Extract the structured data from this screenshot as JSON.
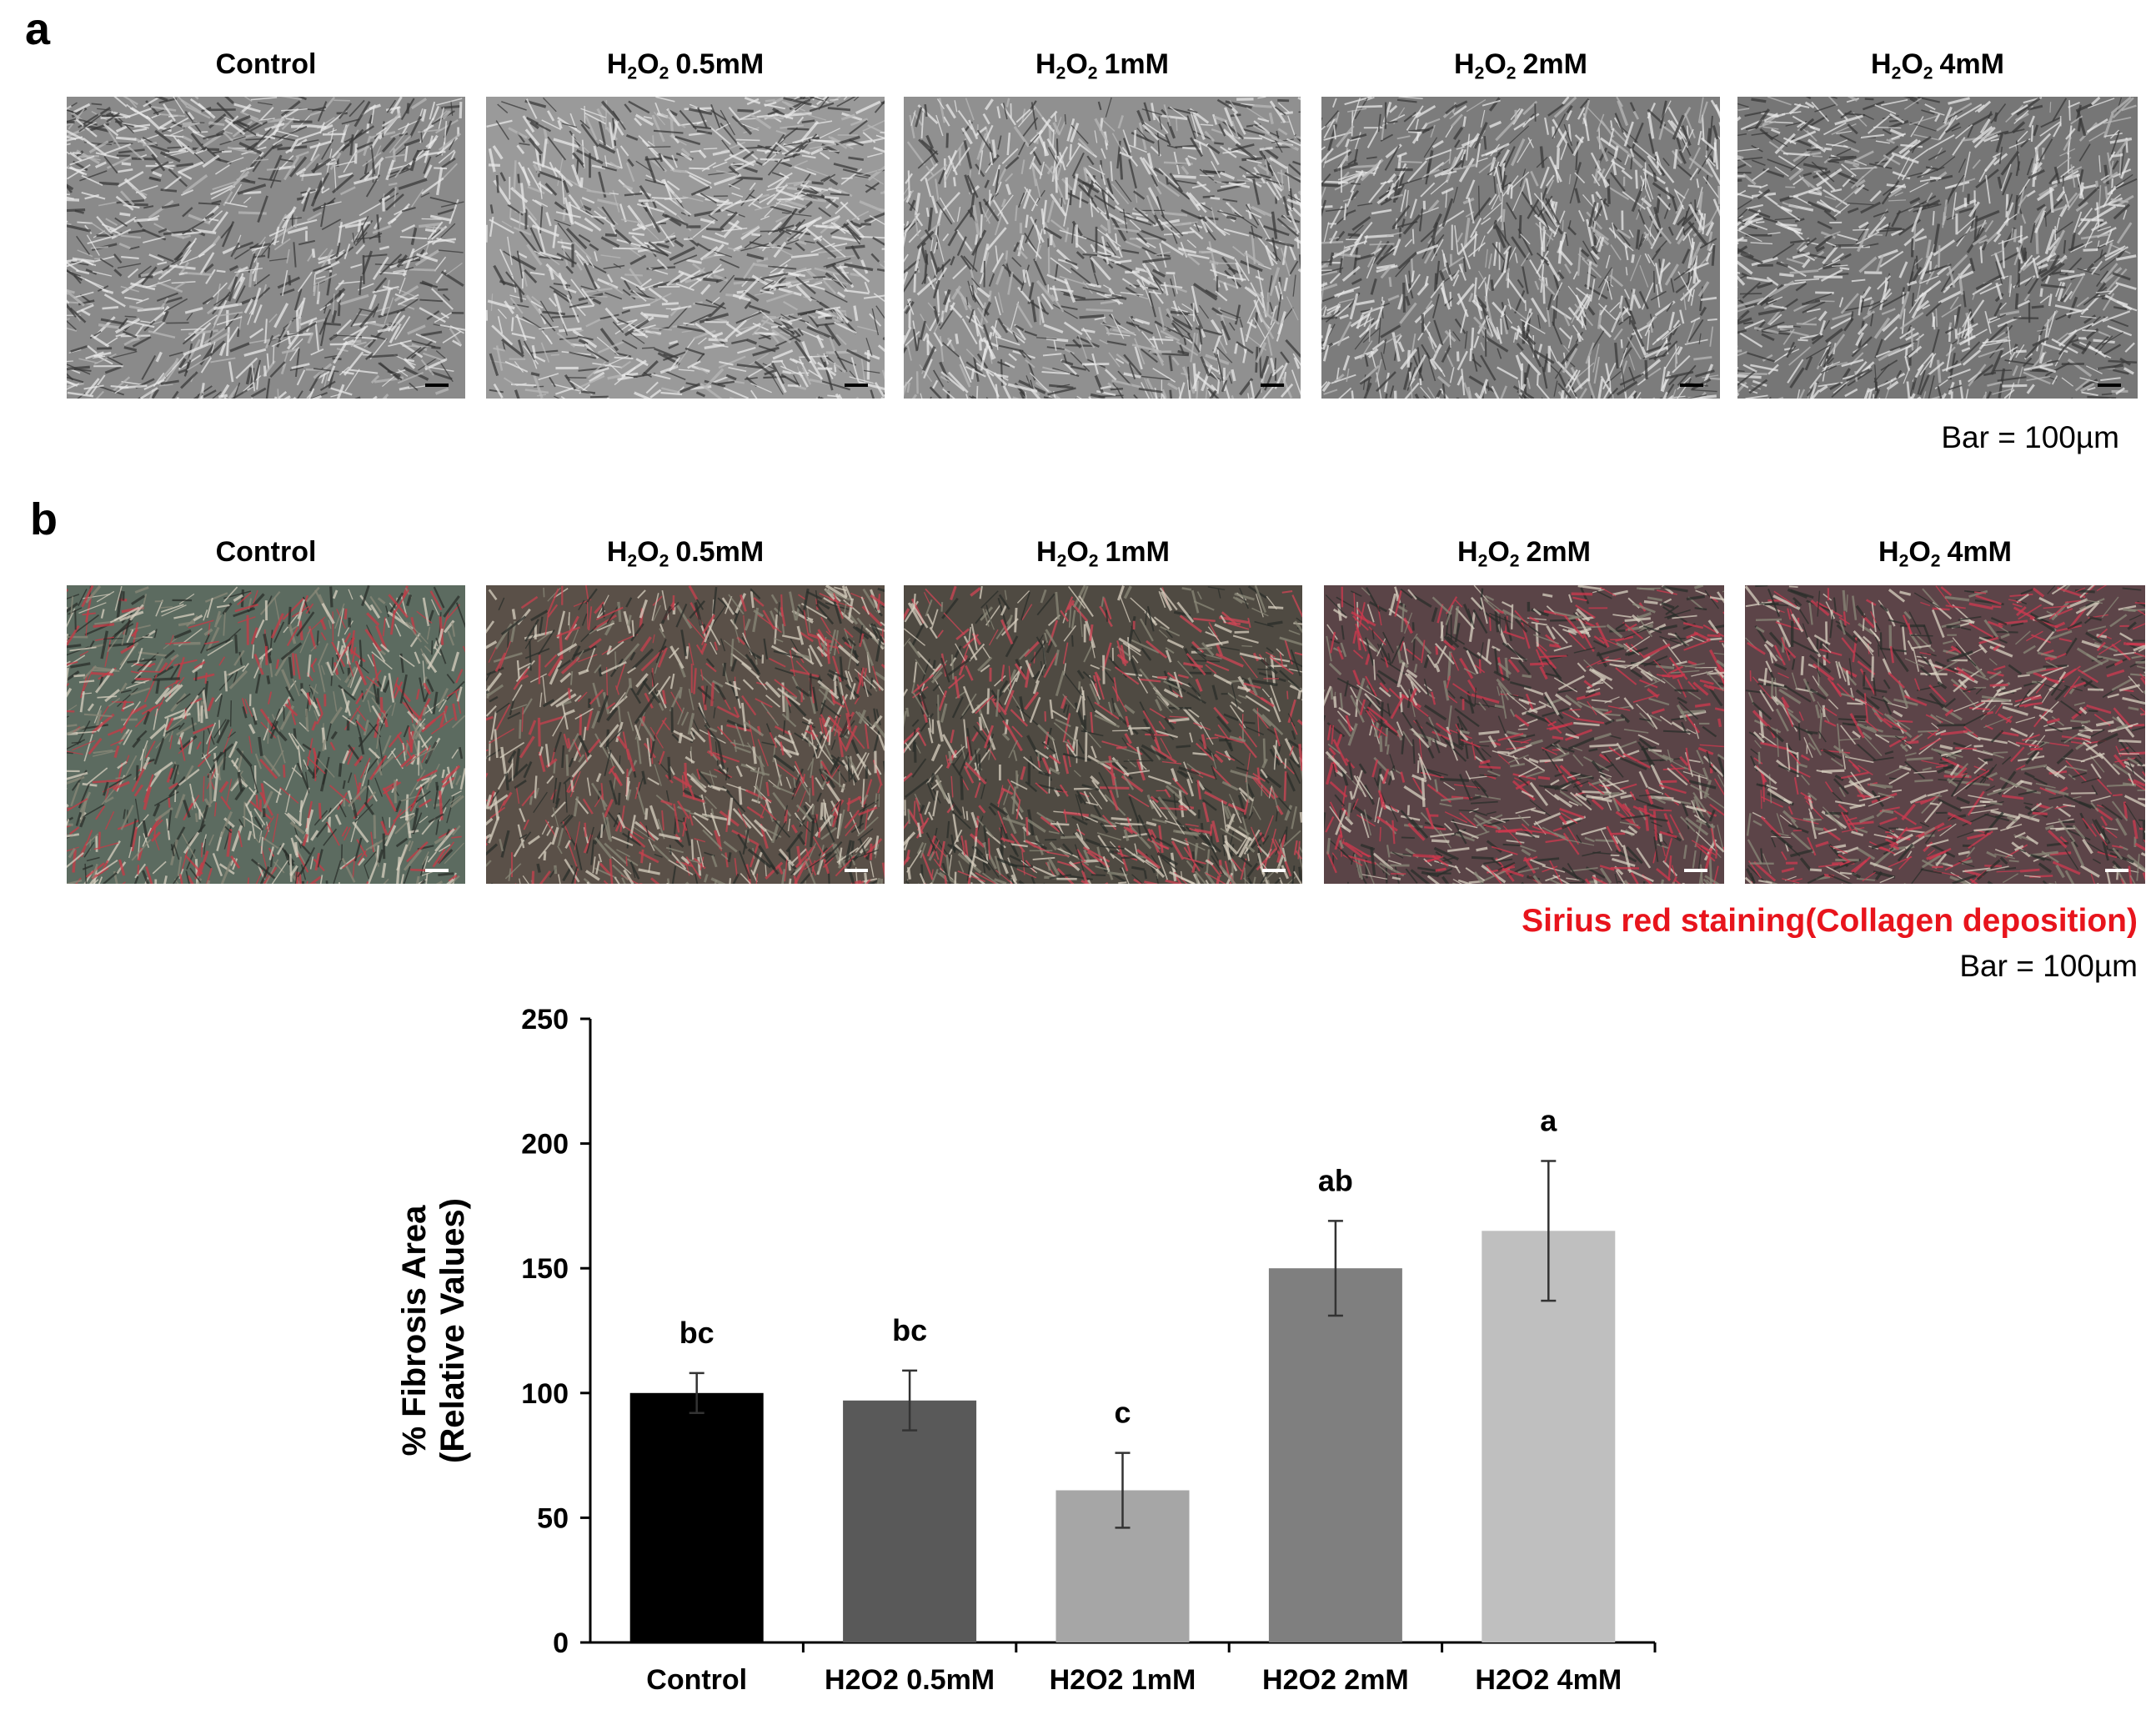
{
  "figure": {
    "panel_a": {
      "letter": "a",
      "tiles": [
        {
          "label_main": "Control",
          "label_sub": "",
          "label_tail": "",
          "tone": "#8a8a8a"
        },
        {
          "label_main": "H",
          "label_sub": "2",
          "label_mid": "O",
          "label_sub2": "2",
          "label_tail": "0.5mM",
          "tone": "#9a9a9a"
        },
        {
          "label_main": "H",
          "label_sub": "2",
          "label_mid": "O",
          "label_sub2": "2",
          "label_tail": "1mM",
          "tone": "#909090"
        },
        {
          "label_main": "H",
          "label_sub": "2",
          "label_mid": "O",
          "label_sub2": "2",
          "label_tail": "2mM",
          "tone": "#7c7c7c"
        },
        {
          "label_main": "H",
          "label_sub": "2",
          "label_mid": "O",
          "label_sub2": "2",
          "label_tail": "4mM",
          "tone": "#767676"
        }
      ],
      "bar_note": "Bar = 100µm"
    },
    "panel_b": {
      "letter": "b",
      "tiles": [
        {
          "label_main": "Control",
          "label_sub": "",
          "label_tail": "",
          "tone": "#5c6b60",
          "stain": "#c83a46"
        },
        {
          "label_main": "H",
          "label_sub": "2",
          "label_mid": "O",
          "label_sub2": "2",
          "label_tail": "0.5mM",
          "tone": "#5a5048",
          "stain": "#c8404e"
        },
        {
          "label_main": "H",
          "label_sub": "2",
          "label_mid": "O",
          "label_sub2": "2",
          "label_tail": "1mM",
          "tone": "#4f4a42",
          "stain": "#d04656"
        },
        {
          "label_main": "H",
          "label_sub": "2",
          "label_mid": "O",
          "label_sub2": "2",
          "label_tail": "2mM",
          "tone": "#5a4447",
          "stain": "#d0384e"
        },
        {
          "label_main": "H",
          "label_sub": "2",
          "label_mid": "O",
          "label_sub2": "2",
          "label_tail": "4mM",
          "tone": "#5c4448",
          "stain": "#cf3a50"
        }
      ],
      "stain_note": "Sirius red staining(Collagen deposition)",
      "bar_note": "Bar = 100µm"
    }
  },
  "chart_data": {
    "type": "bar",
    "categories": [
      "Control",
      "H2O2 0.5mM",
      "H2O2 1mM",
      "H2O2 2mM",
      "H2O2 4mM"
    ],
    "values": [
      100,
      97,
      61,
      150,
      165
    ],
    "errors": [
      8,
      12,
      15,
      19,
      28
    ],
    "annotations": [
      "bc",
      "bc",
      "c",
      "ab",
      "a"
    ],
    "colors": [
      "#000000",
      "#595959",
      "#a6a6a6",
      "#7f7f7f",
      "#bfbfbf"
    ],
    "ylabel_line1": "% Fibrosis Area",
    "ylabel_line2": "(Relative Values)",
    "ylim": [
      0,
      250
    ],
    "yticks": [
      0,
      50,
      100,
      150,
      200,
      250
    ],
    "grid": false
  }
}
